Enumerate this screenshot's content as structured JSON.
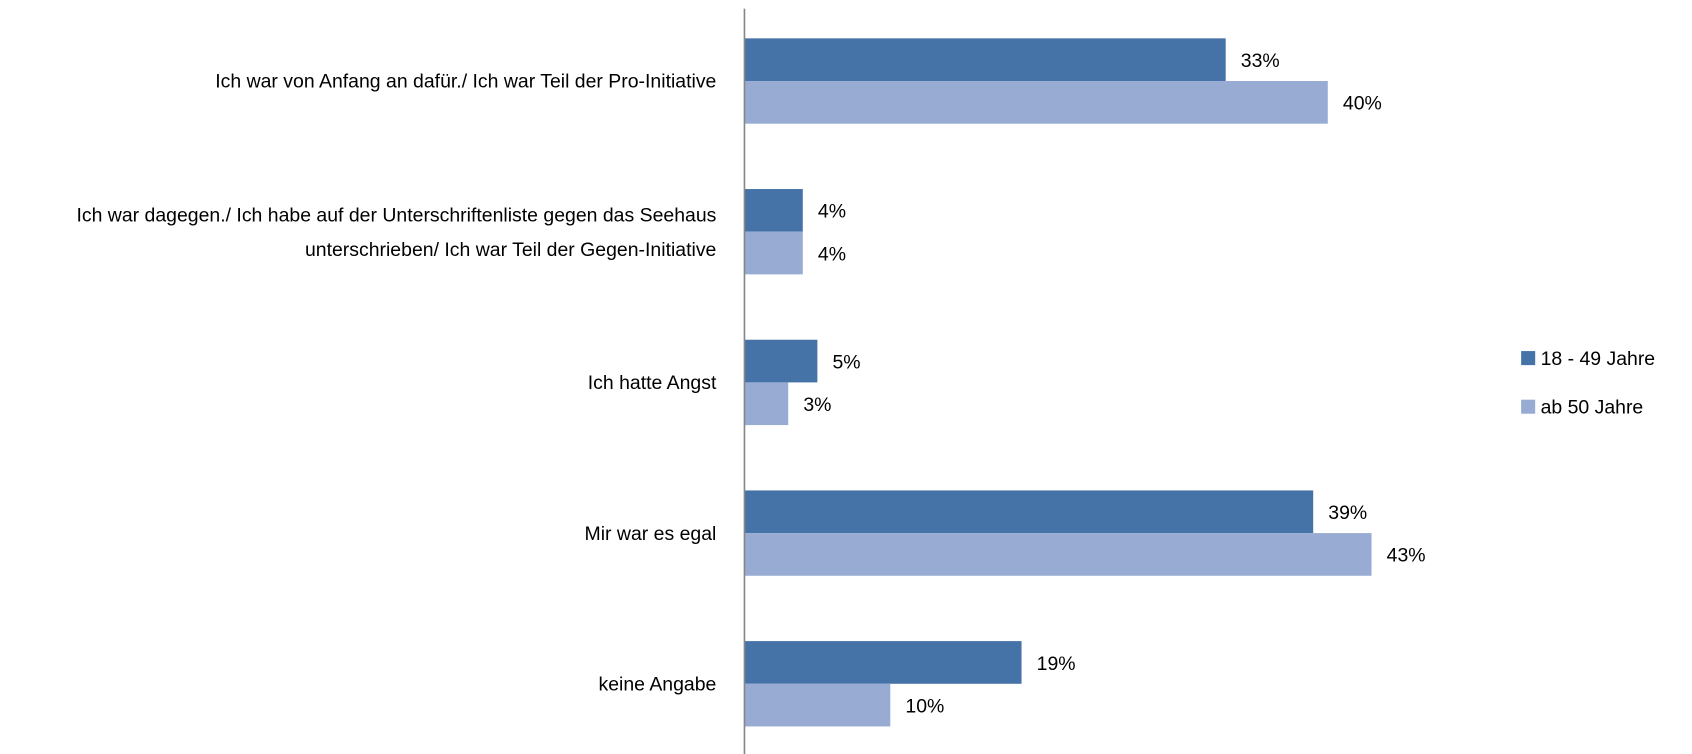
{
  "chart_data": {
    "type": "bar",
    "orientation": "horizontal",
    "categories": [
      "Ich war von Anfang an dafür./ Ich war Teil der Pro-Initiative",
      "Ich war dagegen./ Ich habe auf der Unterschriftenliste gegen das Seehaus unterschrieben/ Ich war Teil der Gegen-Initiative",
      "Ich hatte Angst",
      "Mir war es egal",
      "keine Angabe"
    ],
    "series": [
      {
        "name": "18 - 49 Jahre",
        "color": "#4572a7",
        "values": [
          33,
          4,
          5,
          39,
          19
        ],
        "value_labels": [
          "33%",
          "4%",
          "5%",
          "39%",
          "19%"
        ]
      },
      {
        "name": "ab 50 Jahre",
        "color": "#98abd3",
        "values": [
          40,
          4,
          3,
          43,
          10
        ],
        "value_labels": [
          "40%",
          "4%",
          "3%",
          "43%",
          "10%"
        ]
      }
    ],
    "legend": "right"
  }
}
